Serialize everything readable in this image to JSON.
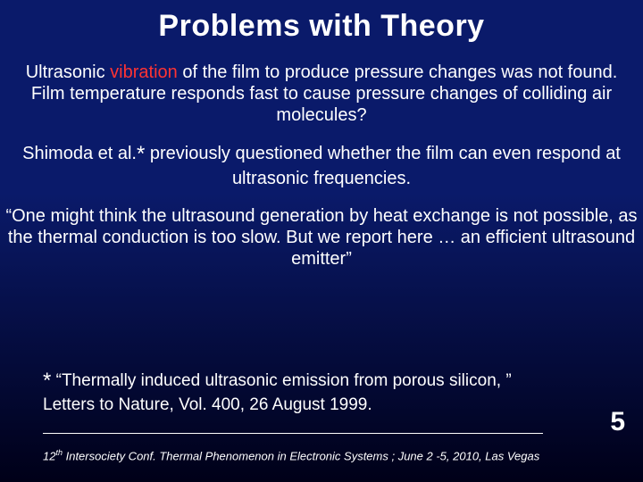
{
  "background": {
    "gradient_top": "#0a1a6a",
    "gradient_bottom": "#000018"
  },
  "text_color": "#ffffff",
  "accent_color": "#ff3333",
  "title": "Problems with Theory",
  "title_fontsize": 34,
  "body_fontsize": 20,
  "paragraphs": {
    "p1_a": "Ultrasonic ",
    "p1_red": "vibration",
    "p1_b": " of the film to produce pressure changes was not found. Film temperature responds fast to cause pressure changes of colliding air molecules?",
    "p2_a": "Shimoda et al.",
    "p2_star": "*",
    "p2_b": " previously questioned whether the film can even respond at ultrasonic frequencies.",
    "p3": "“One might think the ultrasound generation by heat exchange is not possible, as the thermal conduction is too slow. But we report here … an efficient ultrasound emitter”"
  },
  "footnote": {
    "star": "*",
    "text": " “Thermally induced ultrasonic emission from porous silicon, ” Letters to Nature, Vol. 400, 26 August  1999."
  },
  "page_number": "5",
  "conference_a": "12",
  "conference_sup": "th",
  "conference_b": " Intersociety Conf. Thermal Phenomenon in Electronic Systems ; June 2 -5, 2010, Las Vegas"
}
